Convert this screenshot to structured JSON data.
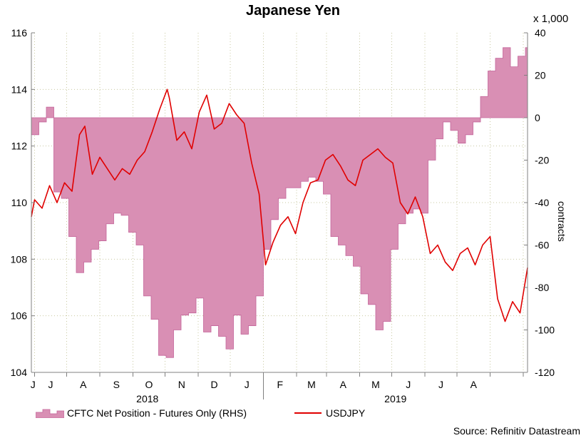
{
  "chart_data": {
    "type": "line",
    "title": "Japanese Yen",
    "right_unit": "x 1,000",
    "right_axis_label": "contracts",
    "source": "Source: Refinitiv Datastream",
    "x_ticks": [
      "J",
      "J",
      "A",
      "S",
      "O",
      "N",
      "D",
      "J",
      "F",
      "M",
      "A",
      "M",
      "J",
      "J",
      "A"
    ],
    "year_labels": [
      "2018",
      "2019"
    ],
    "left_axis": {
      "ylim": [
        104,
        116
      ],
      "ticks": [
        "104",
        "106",
        "108",
        "110",
        "112",
        "114",
        "116"
      ]
    },
    "right_axis": {
      "ylim": [
        -120,
        40
      ],
      "ticks": [
        "-120",
        "-100",
        "-80",
        "-60",
        "-40",
        "-20",
        "0",
        "20",
        "40"
      ]
    },
    "grid": true,
    "legend_position": "bottom",
    "colors": {
      "line": "#e00000",
      "area_fill": "#d98fb4",
      "area_edge": "#c4659a"
    },
    "series": [
      {
        "name": "CFTC Net Position - Futures Only (RHS)",
        "axis": "right",
        "style": "area",
        "x": [
          "2018-05-29",
          "2018-06-05",
          "2018-06-12",
          "2018-06-19",
          "2018-06-26",
          "2018-07-03",
          "2018-07-10",
          "2018-07-17",
          "2018-07-24",
          "2018-07-31",
          "2018-08-07",
          "2018-08-14",
          "2018-08-21",
          "2018-08-28",
          "2018-09-04",
          "2018-09-11",
          "2018-09-18",
          "2018-09-25",
          "2018-10-02",
          "2018-10-09",
          "2018-10-16",
          "2018-10-23",
          "2018-10-30",
          "2018-11-06",
          "2018-11-13",
          "2018-11-20",
          "2018-11-27",
          "2018-12-04",
          "2018-12-11",
          "2018-12-18",
          "2018-12-25",
          "2019-01-01",
          "2019-01-08",
          "2019-01-15",
          "2019-01-22",
          "2019-01-29",
          "2019-02-05",
          "2019-02-12",
          "2019-02-19",
          "2019-02-26",
          "2019-03-05",
          "2019-03-12",
          "2019-03-19",
          "2019-03-26",
          "2019-04-02",
          "2019-04-09",
          "2019-04-16",
          "2019-04-23",
          "2019-04-30",
          "2019-05-07",
          "2019-05-14",
          "2019-05-21",
          "2019-05-28",
          "2019-06-04",
          "2019-06-11",
          "2019-06-18",
          "2019-06-25",
          "2019-07-02",
          "2019-07-09",
          "2019-07-16",
          "2019-07-23",
          "2019-07-30",
          "2019-08-06",
          "2019-08-13",
          "2019-08-20",
          "2019-08-27",
          "2019-09-03"
        ],
        "values": [
          -8,
          -2,
          5,
          -35,
          -38,
          -56,
          -73,
          -68,
          -62,
          -58,
          -50,
          -45,
          -46,
          -54,
          -60,
          -84,
          -95,
          -112,
          -113,
          -100,
          -93,
          -92,
          -85,
          -101,
          -98,
          -103,
          -109,
          -93,
          -102,
          -98,
          -84,
          -62,
          -48,
          -38,
          -33,
          -33,
          -30,
          -28,
          -30,
          -36,
          -56,
          -60,
          -65,
          -70,
          -83,
          -88,
          -100,
          -96,
          -62,
          -50,
          -45,
          -43,
          -45,
          -20,
          -10,
          -2,
          -6,
          -12,
          -8,
          -2,
          10,
          22,
          28,
          33,
          24,
          29,
          33
        ]
      },
      {
        "name": "USDJPY",
        "axis": "left",
        "style": "line",
        "x": [
          "2018-05-29",
          "2018-06-01",
          "2018-06-08",
          "2018-06-15",
          "2018-06-22",
          "2018-06-29",
          "2018-07-06",
          "2018-07-13",
          "2018-07-18",
          "2018-07-25",
          "2018-08-01",
          "2018-08-08",
          "2018-08-15",
          "2018-08-22",
          "2018-08-29",
          "2018-09-05",
          "2018-09-12",
          "2018-09-19",
          "2018-09-26",
          "2018-10-03",
          "2018-10-05",
          "2018-10-12",
          "2018-10-19",
          "2018-10-26",
          "2018-11-02",
          "2018-11-09",
          "2018-11-16",
          "2018-11-23",
          "2018-11-30",
          "2018-12-07",
          "2018-12-14",
          "2018-12-21",
          "2018-12-28",
          "2019-01-03",
          "2019-01-10",
          "2019-01-17",
          "2019-01-24",
          "2019-01-31",
          "2019-02-07",
          "2019-02-14",
          "2019-02-21",
          "2019-02-28",
          "2019-03-07",
          "2019-03-14",
          "2019-03-21",
          "2019-03-28",
          "2019-04-04",
          "2019-04-11",
          "2019-04-18",
          "2019-04-25",
          "2019-05-02",
          "2019-05-09",
          "2019-05-16",
          "2019-05-23",
          "2019-05-30",
          "2019-06-06",
          "2019-06-13",
          "2019-06-20",
          "2019-06-27",
          "2019-07-04",
          "2019-07-11",
          "2019-07-18",
          "2019-07-25",
          "2019-08-01",
          "2019-08-08",
          "2019-08-15",
          "2019-08-22",
          "2019-08-29",
          "2019-09-05"
        ],
        "values": [
          109.5,
          110.1,
          109.8,
          110.6,
          110.0,
          110.7,
          110.4,
          112.4,
          112.7,
          111.0,
          111.6,
          111.2,
          110.8,
          111.2,
          111.0,
          111.5,
          111.8,
          112.5,
          113.3,
          114.0,
          113.7,
          112.2,
          112.5,
          111.9,
          113.2,
          113.8,
          112.6,
          112.8,
          113.5,
          113.1,
          112.8,
          111.4,
          110.3,
          107.8,
          108.6,
          109.2,
          109.5,
          108.9,
          110.0,
          110.7,
          110.8,
          111.5,
          111.7,
          111.3,
          110.8,
          110.6,
          111.5,
          111.7,
          111.9,
          111.6,
          111.4,
          110.0,
          109.6,
          110.2,
          109.5,
          108.2,
          108.5,
          107.9,
          107.6,
          108.2,
          108.4,
          107.8,
          108.5,
          108.8,
          106.6,
          105.8,
          106.5,
          106.1,
          107.7
        ]
      }
    ]
  }
}
